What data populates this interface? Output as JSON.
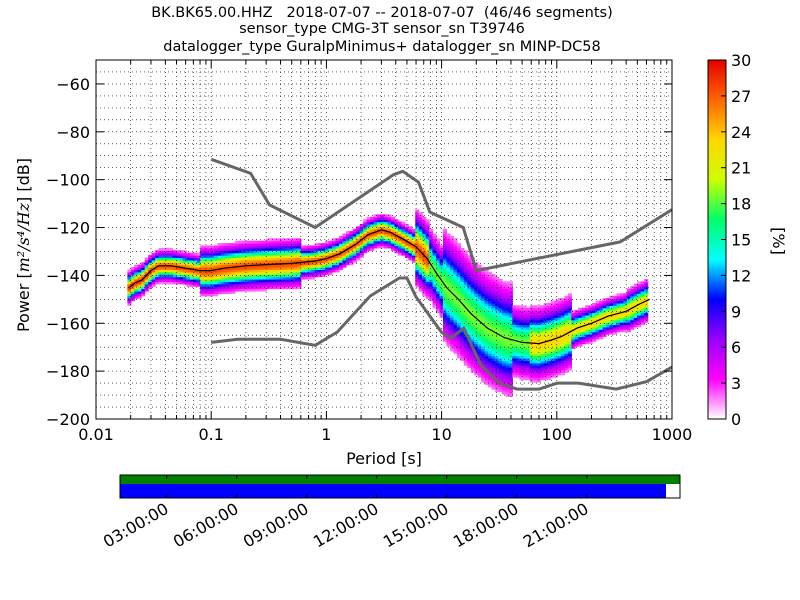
{
  "chart_data": {
    "type": "heatmap",
    "title_lines": [
      "BK.BK65.00.HHZ   2018-07-07 -- 2018-07-07  (46/46 segments)",
      "sensor_type CMG-3T sensor_sn T39746",
      "datalogger_type GuralpMinimus+ datalogger_sn MINP-DC58"
    ],
    "xlabel": "Period [s]",
    "ylabel_prefix": "Power [",
    "ylabel_math": "m²/s⁴/Hz",
    "ylabel_suffix": "] [dB]",
    "x_scale": "log",
    "xlim": [
      0.01,
      1000
    ],
    "ylim": [
      -200,
      -50
    ],
    "x_ticks": [
      {
        "v": 0.01,
        "label": "0.01"
      },
      {
        "v": 0.1,
        "label": "0.1"
      },
      {
        "v": 1,
        "label": "1"
      },
      {
        "v": 10,
        "label": "10"
      },
      {
        "v": 100,
        "label": "100"
      },
      {
        "v": 1000,
        "label": "1000"
      }
    ],
    "y_ticks": [
      {
        "v": -60,
        "label": "−60"
      },
      {
        "v": -80,
        "label": "−80"
      },
      {
        "v": -100,
        "label": "−100"
      },
      {
        "v": -120,
        "label": "−120"
      },
      {
        "v": -140,
        "label": "−140"
      },
      {
        "v": -160,
        "label": "−160"
      },
      {
        "v": -180,
        "label": "−180"
      },
      {
        "v": -200,
        "label": "−200"
      }
    ],
    "colorbar": {
      "label": "[%]",
      "range": [
        0,
        30
      ],
      "ticks": [
        "0",
        "3",
        "6",
        "9",
        "12",
        "15",
        "18",
        "21",
        "24",
        "27",
        "30"
      ]
    },
    "nhnm": [
      [
        0.1,
        -91.5
      ],
      [
        0.22,
        -97.4
      ],
      [
        0.32,
        -110.5
      ],
      [
        0.8,
        -120.0
      ],
      [
        3.8,
        -98.0
      ],
      [
        4.6,
        -96.5
      ],
      [
        6.3,
        -101.0
      ],
      [
        7.9,
        -113.5
      ],
      [
        15.4,
        -120.0
      ],
      [
        20.0,
        -138.0
      ],
      [
        354.8,
        -126.0
      ],
      [
        1000,
        -112.5
      ]
    ],
    "nlnm": [
      [
        0.1,
        -168.0
      ],
      [
        0.17,
        -166.7
      ],
      [
        0.4,
        -166.7
      ],
      [
        0.8,
        -169.2
      ],
      [
        1.24,
        -163.7
      ],
      [
        2.4,
        -148.6
      ],
      [
        4.3,
        -141.1
      ],
      [
        5.0,
        -141.1
      ],
      [
        6.0,
        -149.0
      ],
      [
        10.0,
        -163.8
      ],
      [
        12.0,
        -166.2
      ],
      [
        15.6,
        -162.1
      ],
      [
        21.9,
        -177.5
      ],
      [
        31.6,
        -185.0
      ],
      [
        45.0,
        -187.5
      ],
      [
        70.0,
        -187.5
      ],
      [
        101.0,
        -185.0
      ],
      [
        154.0,
        -185.0
      ],
      [
        328.0,
        -187.5
      ],
      [
        600.0,
        -184.4
      ],
      [
        1000,
        -178.3
      ]
    ],
    "mode": [
      [
        0.0195,
        -145
      ],
      [
        0.022,
        -143
      ],
      [
        0.025,
        -142
      ],
      [
        0.03,
        -138
      ],
      [
        0.035,
        -136
      ],
      [
        0.045,
        -136
      ],
      [
        0.06,
        -137
      ],
      [
        0.08,
        -138
      ],
      [
        0.1,
        -138
      ],
      [
        0.13,
        -137
      ],
      [
        0.2,
        -136
      ],
      [
        0.3,
        -135.5
      ],
      [
        0.5,
        -135
      ],
      [
        0.8,
        -134
      ],
      [
        1.0,
        -133
      ],
      [
        1.3,
        -131
      ],
      [
        1.8,
        -127
      ],
      [
        2.3,
        -123
      ],
      [
        3.0,
        -121
      ],
      [
        3.6,
        -122
      ],
      [
        4.5,
        -124.5
      ],
      [
        6.0,
        -128
      ],
      [
        7.5,
        -133
      ],
      [
        9.0,
        -139
      ],
      [
        11.0,
        -145
      ],
      [
        14.0,
        -150
      ],
      [
        18.0,
        -156
      ],
      [
        25.0,
        -162
      ],
      [
        35.0,
        -166
      ],
      [
        50.0,
        -168
      ],
      [
        70.0,
        -168.5
      ],
      [
        90.0,
        -167
      ],
      [
        110.0,
        -165.5
      ],
      [
        150.0,
        -162
      ],
      [
        200.0,
        -160
      ],
      [
        280.0,
        -157
      ],
      [
        400.0,
        -155
      ],
      [
        520.0,
        -152
      ],
      [
        640.0,
        -150
      ]
    ],
    "grid": true,
    "timeline": {
      "start_hour": 1,
      "end_hour": 25,
      "tick_labels": [
        "03:00:00",
        "06:00:00",
        "09:00:00",
        "12:00:00",
        "15:00:00",
        "18:00:00",
        "21:00:00"
      ],
      "tick_hours": [
        3,
        6,
        9,
        12,
        15,
        18,
        21
      ],
      "data_fraction": 1.0,
      "coverage_fraction": 0.975,
      "data_color": "#008000",
      "coverage_color": "#0000ff"
    },
    "colors": {
      "nhnm": "#666666",
      "mode": "#000000",
      "colormap": [
        "#ffffff",
        "#ff00ff",
        "#9900ff",
        "#0000ff",
        "#00ffff",
        "#00ff66",
        "#ccff00",
        "#ffd700",
        "#ff6600",
        "#e60000"
      ]
    }
  }
}
